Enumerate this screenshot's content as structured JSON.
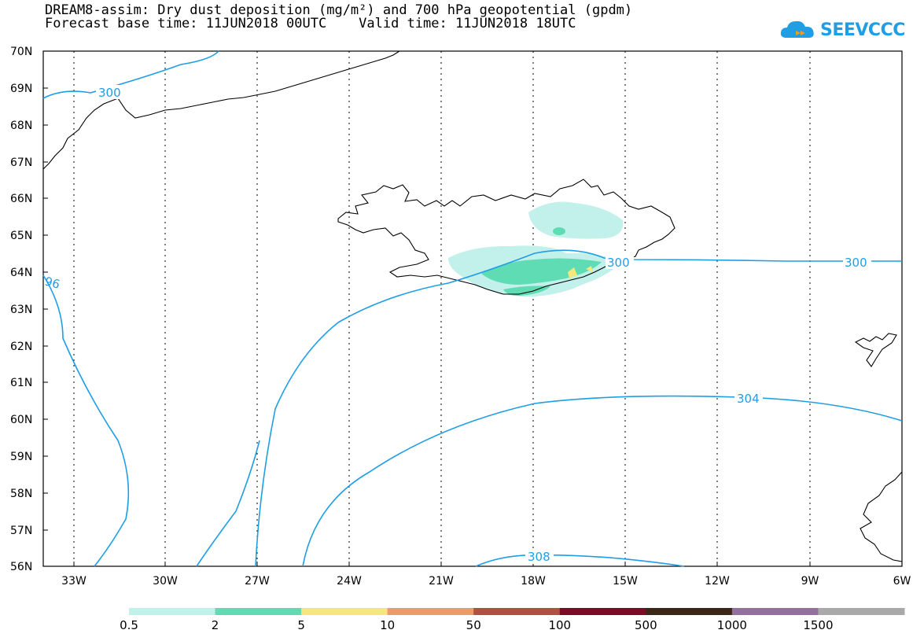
{
  "header": {
    "line1": "DREAM8-assim: Dry dust deposition (mg/m²) and 700 hPa geopotential (gpdm)",
    "line2": "Forecast base time: 11JUN2018 00UTC    Valid time: 11JUN2018 18UTC"
  },
  "logo": {
    "text": "SEEVCCC",
    "icon": "cloud-icon",
    "color": "#1f9ee6"
  },
  "axes": {
    "lat_labels": [
      "70N",
      "69N",
      "68N",
      "67N",
      "66N",
      "65N",
      "64N",
      "63N",
      "62N",
      "61N",
      "60N",
      "59N",
      "58N",
      "57N",
      "56N"
    ],
    "lon_labels": [
      "33W",
      "30W",
      "27W",
      "24W",
      "21W",
      "18W",
      "15W",
      "12W",
      "9W",
      "6W"
    ]
  },
  "contours": {
    "color": "#1f9ee6",
    "labels": [
      "300",
      "300",
      "300",
      "304",
      "308",
      "96"
    ]
  },
  "colorbar": {
    "colors": [
      "#c2f0ea",
      "#5fdcb4",
      "#f5e87a",
      "#ee9a6e",
      "#b24e42",
      "#7e0a26",
      "#3c2618",
      "#94709e",
      "#a9a9a9"
    ],
    "labels": [
      "0.5",
      "2",
      "5",
      "10",
      "50",
      "100",
      "500",
      "1000",
      "1500"
    ]
  }
}
